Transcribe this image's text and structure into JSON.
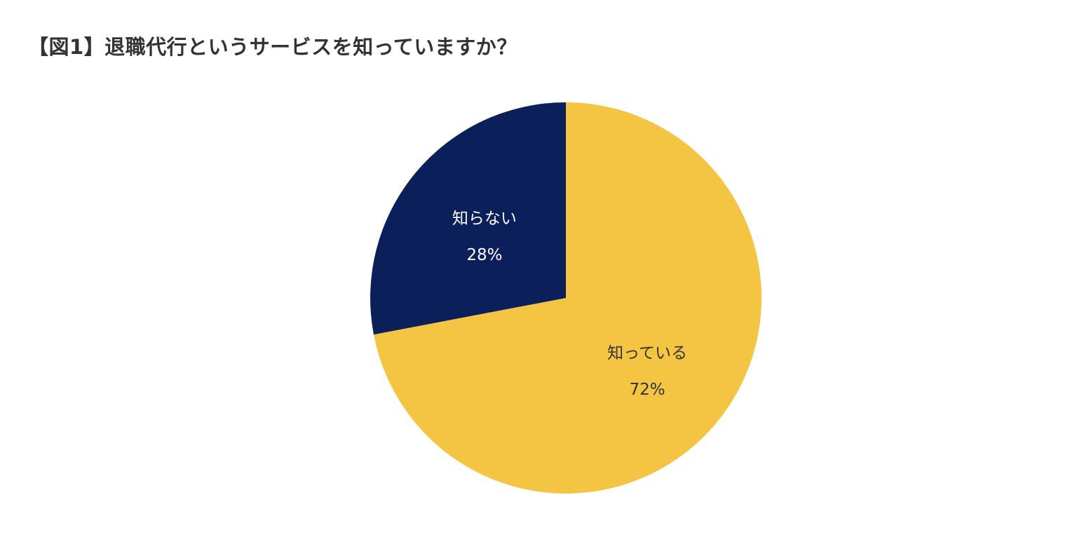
{
  "chart_data": {
    "type": "pie",
    "title": "【図1】退職代行というサービスを知っていますか？",
    "slices": [
      {
        "label": "知っている",
        "value": 72,
        "value_label": "72%",
        "color": "#F4C443",
        "text_color": "#333333"
      },
      {
        "label": "知らない",
        "value": 28,
        "value_label": "28%",
        "color": "#0B1F5B",
        "text_color": "#FFFFFF"
      }
    ],
    "start": "top",
    "direction": "clockwise",
    "legend": "none"
  }
}
